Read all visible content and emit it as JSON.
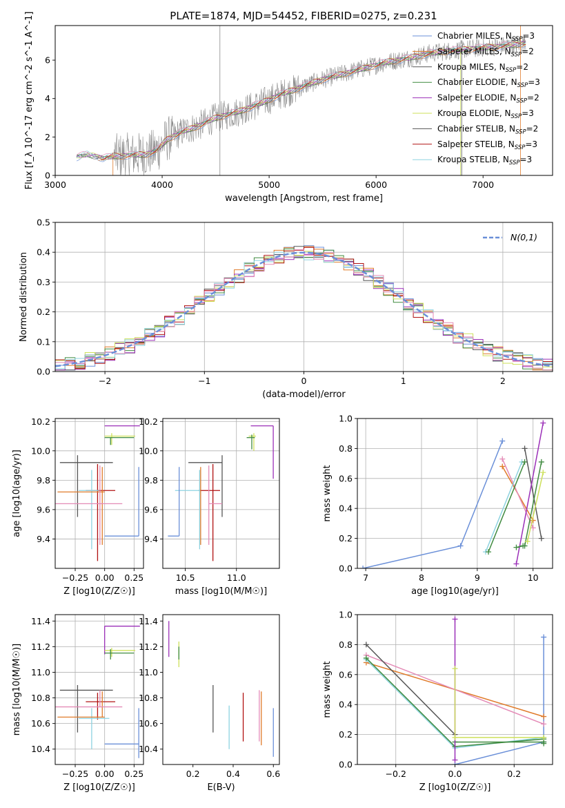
{
  "figure": {
    "title": "PLATE=1874, MJD=54452, FIBERID=0275, z=0.231"
  },
  "colors": {
    "blue": "#6a8fd8",
    "orange": "#e07b2a",
    "gray": "#555555",
    "purple": "#9b2fb8",
    "yellowgreen": "#cde05a",
    "green": "#3f8a3f",
    "red": "#b01010",
    "pink": "#e48ab6",
    "cyan": "#8dd3e0",
    "data": "#8a8a8a",
    "grid": "#b0b0b0"
  },
  "chart_data": [
    {
      "id": "spectrum",
      "type": "line",
      "xlabel": "wavelength [Angstrom, rest frame]",
      "ylabel": "Flux [f_λ 10^-17 erg cm^-2 s^-1 A^-1]",
      "xlim": [
        3000,
        7650
      ],
      "ylim": [
        0,
        7.8
      ],
      "xticks": [
        3000,
        4000,
        5000,
        6000,
        7000
      ],
      "yticks": [
        0,
        2,
        4,
        6
      ],
      "grid": false,
      "legend_position": "right",
      "legend": [
        {
          "model": "Chabrier MILES",
          "sub": "SSP",
          "n": "3",
          "color": "blue"
        },
        {
          "model": "Salpeter MILES",
          "sub": "SSP",
          "n": "2",
          "color": "orange"
        },
        {
          "model": "Kroupa MILES",
          "sub": "SSP",
          "n": "2",
          "color": "gray"
        },
        {
          "model": "Chabrier ELODIE",
          "sub": "SSP",
          "n": "3",
          "color": "green"
        },
        {
          "model": "Salpeter ELODIE",
          "sub": "SSP",
          "n": "2",
          "color": "purple"
        },
        {
          "model": "Kroupa ELODIE",
          "sub": "SSP",
          "n": "3",
          "color": "yellowgreen"
        },
        {
          "model": "Chabrier STELIB",
          "sub": "SSP",
          "n": "2",
          "color": "gray"
        },
        {
          "model": "Salpeter STELIB",
          "sub": "SSP",
          "n": "3",
          "color": "red"
        },
        {
          "model": "Kroupa STELIB",
          "sub": "SSP",
          "n": "3",
          "color": "cyan"
        }
      ],
      "continuum": {
        "x": [
          3200,
          3300,
          3450,
          3550,
          3700,
          3850,
          3950,
          4050,
          4200,
          4350,
          4500,
          4700,
          4900,
          5100,
          5300,
          5500,
          5700,
          5900,
          6100,
          6300,
          6500,
          6700,
          6900,
          7100,
          7300,
          7400
        ],
        "y": [
          0.95,
          1.1,
          0.9,
          1.0,
          1.05,
          1.1,
          1.3,
          1.9,
          2.3,
          2.6,
          3.0,
          3.3,
          3.7,
          4.2,
          4.6,
          5.0,
          5.3,
          5.6,
          5.9,
          6.1,
          6.35,
          6.5,
          6.6,
          6.7,
          6.8,
          6.9
        ]
      }
    },
    {
      "id": "residuals",
      "type": "line",
      "xlabel": "(data-model)/error",
      "ylabel": "Normed distribution",
      "xlim": [
        -2.5,
        2.5
      ],
      "ylim": [
        0,
        0.5
      ],
      "xticks": [
        -2,
        -1,
        0,
        1,
        2
      ],
      "yticks": [
        0.0,
        0.1,
        0.2,
        0.3,
        0.4,
        0.5
      ],
      "grid": true,
      "legend_position": "top-right",
      "legend_label": "N(0,1)",
      "gaussian": {
        "mu": 0,
        "sigma": 1,
        "color": "blue"
      }
    },
    {
      "id": "age_vs_Z",
      "type": "scatter",
      "xlabel": "Z [log10(Z/Z☉)]",
      "ylabel": "age  [log10(age/yr)]",
      "xlim": [
        -0.42,
        0.33
      ],
      "ylim": [
        9.2,
        10.22
      ],
      "xticks": [
        -0.25,
        0.0,
        0.25
      ],
      "yticks": [
        9.4,
        9.6,
        9.8,
        10.0,
        10.2
      ],
      "grid": true,
      "points": [
        {
          "x": 0.0,
          "y": 10.17,
          "xerr": [
            0.0,
            0.3
          ],
          "yerr": [
            0.0,
            0.0
          ],
          "color": "purple"
        },
        {
          "x": 0.06,
          "y": 10.1,
          "xerr": [
            0.06,
            0.2
          ],
          "yerr": [
            0.06,
            0.02
          ],
          "color": "yellowgreen"
        },
        {
          "x": 0.05,
          "y": 10.09,
          "xerr": [
            0.05,
            0.2
          ],
          "yerr": [
            0.05,
            0.0
          ],
          "color": "green"
        },
        {
          "x": -0.23,
          "y": 9.92,
          "xerr": [
            0.15,
            0.3
          ],
          "yerr": [
            0.37,
            0.05
          ],
          "color": "gray"
        },
        {
          "x": -0.06,
          "y": 9.73,
          "xerr": [
            0.1,
            0.15
          ],
          "yerr": [
            0.48,
            0.18
          ],
          "color": "red"
        },
        {
          "x": -0.11,
          "y": 9.73,
          "xerr": [
            0.11,
            0.06
          ],
          "yerr": [
            0.4,
            0.14
          ],
          "color": "cyan"
        },
        {
          "x": -0.02,
          "y": 9.72,
          "xerr": [
            0.38,
            0.02
          ],
          "yerr": [
            0.36,
            0.17
          ],
          "color": "orange"
        },
        {
          "x": -0.04,
          "y": 9.64,
          "xerr": [
            0.38,
            0.19
          ],
          "yerr": [
            0.28,
            0.26
          ],
          "color": "pink"
        },
        {
          "x": 0.29,
          "y": 9.42,
          "xerr": [
            0.29,
            0.0
          ],
          "yerr": [
            0.0,
            0.47
          ],
          "color": "blue"
        }
      ]
    },
    {
      "id": "age_vs_mass",
      "type": "scatter",
      "xlabel": "mass [log10(M/M☉)]",
      "ylabel": "",
      "xlim": [
        10.28,
        11.42
      ],
      "ylim": [
        9.2,
        10.22
      ],
      "xticks": [
        10.5,
        11.0
      ],
      "yticks": [
        9.4,
        9.6,
        9.8,
        10.0,
        10.2
      ],
      "grid": true,
      "points": [
        {
          "x": 11.36,
          "y": 10.17,
          "xerr": [
            0.22,
            0.0
          ],
          "yerr": [
            0.36,
            0.0
          ],
          "color": "purple"
        },
        {
          "x": 11.17,
          "y": 10.1,
          "xerr": [
            0.05,
            0.02
          ],
          "yerr": [
            0.1,
            0.02
          ],
          "color": "yellowgreen"
        },
        {
          "x": 11.15,
          "y": 10.09,
          "xerr": [
            0.05,
            0.03
          ],
          "yerr": [
            0.08,
            0.02
          ],
          "color": "green"
        },
        {
          "x": 10.86,
          "y": 9.92,
          "xerr": [
            0.33,
            0.0
          ],
          "yerr": [
            0.37,
            0.05
          ],
          "color": "gray"
        },
        {
          "x": 10.77,
          "y": 9.73,
          "xerr": [
            0.14,
            0.07
          ],
          "yerr": [
            0.48,
            0.18
          ],
          "color": "red"
        },
        {
          "x": 10.64,
          "y": 9.73,
          "xerr": [
            0.24,
            0.0
          ],
          "yerr": [
            0.4,
            0.14
          ],
          "color": "cyan"
        },
        {
          "x": 10.65,
          "y": 9.72,
          "xerr": [
            0.0,
            0.0
          ],
          "yerr": [
            0.36,
            0.17
          ],
          "color": "orange"
        },
        {
          "x": 10.73,
          "y": 9.64,
          "xerr": [
            0.0,
            0.13
          ],
          "yerr": [
            0.28,
            0.26
          ],
          "color": "pink"
        },
        {
          "x": 10.44,
          "y": 9.42,
          "xerr": [
            0.11,
            0.0
          ],
          "yerr": [
            0.0,
            0.47
          ],
          "color": "blue"
        }
      ]
    },
    {
      "id": "mass_weight_vs_age",
      "type": "line",
      "xlabel": "age  [log10(age/yr)]",
      "ylabel": "mass weight",
      "xlim": [
        6.85,
        10.35
      ],
      "ylim": [
        0.0,
        1.0
      ],
      "xticks": [
        7,
        8,
        9,
        10
      ],
      "yticks": [
        0.0,
        0.2,
        0.4,
        0.6,
        0.8,
        1.0
      ],
      "grid": true,
      "series": [
        {
          "color": "blue",
          "x": [
            6.95,
            8.7,
            9.45
          ],
          "y": [
            0.0,
            0.15,
            0.85
          ]
        },
        {
          "color": "orange",
          "x": [
            9.45,
            10.0
          ],
          "y": [
            0.68,
            0.32
          ]
        },
        {
          "color": "pink",
          "x": [
            9.45,
            10.0
          ],
          "y": [
            0.73,
            0.27
          ]
        },
        {
          "color": "cyan",
          "x": [
            9.15,
            9.8
          ],
          "y": [
            0.11,
            0.71
          ]
        },
        {
          "color": "green",
          "x": [
            9.2,
            9.85
          ],
          "y": [
            0.11,
            0.71
          ]
        },
        {
          "color": "gray",
          "x": [
            9.85,
            10.15
          ],
          "y": [
            0.8,
            0.2
          ]
        },
        {
          "color": "green",
          "x": [
            9.85,
            10.15
          ],
          "y": [
            0.15,
            0.71
          ]
        },
        {
          "color": "purple",
          "x": [
            9.7,
            10.18
          ],
          "y": [
            0.03,
            0.97
          ]
        },
        {
          "color": "yellowgreen",
          "x": [
            9.9,
            10.18
          ],
          "y": [
            0.18,
            0.64
          ]
        },
        {
          "color": "green",
          "x": [
            9.7,
            9.82
          ],
          "y": [
            0.14,
            0.15
          ]
        }
      ]
    },
    {
      "id": "mass_vs_Z",
      "type": "scatter",
      "xlabel": "Z [log10(Z/Z☉)]",
      "ylabel": "mass [log10(M/M☉)]",
      "xlim": [
        -0.42,
        0.33
      ],
      "ylim": [
        10.28,
        11.45
      ],
      "xticks": [
        -0.25,
        0.0,
        0.25
      ],
      "yticks": [
        10.4,
        10.6,
        10.8,
        11.0,
        11.2,
        11.4
      ],
      "grid": true,
      "points": [
        {
          "x": 0.0,
          "y": 11.36,
          "xerr": [
            0.0,
            0.3
          ],
          "yerr": [
            0.22,
            0.0
          ],
          "color": "purple"
        },
        {
          "x": 0.06,
          "y": 11.17,
          "xerr": [
            0.06,
            0.2
          ],
          "yerr": [
            0.05,
            0.02
          ],
          "color": "yellowgreen"
        },
        {
          "x": 0.05,
          "y": 11.15,
          "xerr": [
            0.05,
            0.2
          ],
          "yerr": [
            0.05,
            0.03
          ],
          "color": "green"
        },
        {
          "x": -0.23,
          "y": 10.86,
          "xerr": [
            0.15,
            0.3
          ],
          "yerr": [
            0.33,
            0.04
          ],
          "color": "gray"
        },
        {
          "x": -0.06,
          "y": 10.77,
          "xerr": [
            0.1,
            0.15
          ],
          "yerr": [
            0.14,
            0.07
          ],
          "color": "red"
        },
        {
          "x": -0.11,
          "y": 10.64,
          "xerr": [
            0.11,
            0.15
          ],
          "yerr": [
            0.24,
            0.08
          ],
          "color": "cyan"
        },
        {
          "x": -0.02,
          "y": 10.65,
          "xerr": [
            0.38,
            0.02
          ],
          "yerr": [
            0.0,
            0.2
          ],
          "color": "orange"
        },
        {
          "x": -0.04,
          "y": 10.73,
          "xerr": [
            0.38,
            0.19
          ],
          "yerr": [
            0.0,
            0.13
          ],
          "color": "pink"
        },
        {
          "x": 0.29,
          "y": 10.44,
          "xerr": [
            0.29,
            0.0
          ],
          "yerr": [
            0.11,
            0.28
          ],
          "color": "blue"
        }
      ]
    },
    {
      "id": "mass_vs_EBV",
      "type": "scatter",
      "xlabel": "E(B-V)",
      "ylabel": "",
      "xlim": [
        0.05,
        0.63
      ],
      "ylim": [
        10.28,
        11.45
      ],
      "xticks": [
        0.2,
        0.4,
        0.6
      ],
      "yticks": [
        10.4,
        10.6,
        10.8,
        11.0,
        11.2,
        11.4
      ],
      "grid": false,
      "points": [
        {
          "x": 0.08,
          "y": 11.26,
          "yerr": [
            0.14,
            0.14
          ],
          "color": "purple"
        },
        {
          "x": 0.13,
          "y": 11.14,
          "yerr": [
            0.1,
            0.1
          ],
          "color": "yellowgreen"
        },
        {
          "x": 0.13,
          "y": 11.15,
          "yerr": [
            0.05,
            0.05
          ],
          "color": "green"
        },
        {
          "x": 0.3,
          "y": 10.72,
          "yerr": [
            0.19,
            0.18
          ],
          "color": "gray"
        },
        {
          "x": 0.38,
          "y": 10.57,
          "yerr": [
            0.17,
            0.17
          ],
          "color": "cyan"
        },
        {
          "x": 0.45,
          "y": 10.65,
          "yerr": [
            0.19,
            0.19
          ],
          "color": "red"
        },
        {
          "x": 0.53,
          "y": 10.66,
          "yerr": [
            0.2,
            0.2
          ],
          "color": "pink"
        },
        {
          "x": 0.54,
          "y": 10.64,
          "yerr": [
            0.21,
            0.21
          ],
          "color": "orange"
        },
        {
          "x": 0.6,
          "y": 10.53,
          "yerr": [
            0.19,
            0.19
          ],
          "color": "blue"
        }
      ]
    },
    {
      "id": "mass_weight_vs_Z",
      "type": "line",
      "xlabel": "Z [log10(Z/Z☉)]",
      "ylabel": "mass weight",
      "xlim": [
        -0.33,
        0.33
      ],
      "ylim": [
        0.0,
        1.0
      ],
      "xticks": [
        -0.2,
        0.0,
        0.2
      ],
      "yticks": [
        0.0,
        0.2,
        0.4,
        0.6,
        0.8,
        1.0
      ],
      "grid": true,
      "series": [
        {
          "color": "blue",
          "x": [
            0.0,
            0.3,
            0.3
          ],
          "y": [
            0.0,
            0.15,
            0.85
          ]
        },
        {
          "color": "orange",
          "x": [
            -0.3,
            0.3
          ],
          "y": [
            0.68,
            0.32
          ]
        },
        {
          "color": "pink",
          "x": [
            -0.3,
            0.3
          ],
          "y": [
            0.73,
            0.27
          ]
        },
        {
          "color": "cyan",
          "x": [
            -0.3,
            0.0,
            0.3
          ],
          "y": [
            0.7,
            0.11,
            0.18
          ]
        },
        {
          "color": "green",
          "x": [
            -0.3,
            0.0,
            0.3
          ],
          "y": [
            0.71,
            0.12,
            0.17
          ]
        },
        {
          "color": "gray",
          "x": [
            -0.3,
            0.0
          ],
          "y": [
            0.8,
            0.2
          ]
        },
        {
          "color": "green",
          "x": [
            0.0,
            0.3,
            0.3
          ],
          "y": [
            0.15,
            0.15,
            0.14
          ]
        },
        {
          "color": "purple",
          "x": [
            0.0,
            0.0
          ],
          "y": [
            0.03,
            0.97
          ]
        },
        {
          "color": "yellowgreen",
          "x": [
            0.0,
            0.0,
            0.3
          ],
          "y": [
            0.64,
            0.18,
            0.18
          ]
        }
      ]
    }
  ]
}
